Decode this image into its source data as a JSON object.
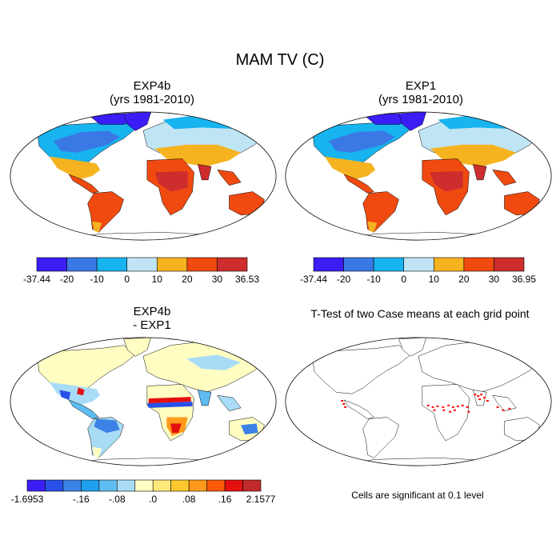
{
  "title": "MAM TV (C)",
  "panels": [
    {
      "id": "exp4b",
      "title_line1": "EXP4b",
      "title_line2": "(yrs 1981-2010)"
    },
    {
      "id": "exp1",
      "title_line1": "EXP1",
      "title_line2": "(yrs 1981-2010)"
    },
    {
      "id": "diff",
      "title_line1": "EXP4b",
      "title_line2": "- EXP1"
    },
    {
      "id": "ttest",
      "title_line1": "T-Test of two Case means at each grid point"
    }
  ],
  "colorbars": [
    {
      "id": "exp4b",
      "colors": [
        "#3a1ef5",
        "#3a78e6",
        "#17b4ef",
        "#bfe5f5",
        "#f5b320",
        "#f04a10",
        "#cd2d2d"
      ],
      "labels": [
        "-37.44",
        "-20",
        "-10",
        "0",
        "10",
        "20",
        "30",
        "36.53"
      ]
    },
    {
      "id": "exp1",
      "colors": [
        "#3a1ef5",
        "#3a78e6",
        "#17b4ef",
        "#bfe5f5",
        "#f5b320",
        "#f04a10",
        "#cd2d2d"
      ],
      "labels": [
        "-37.44",
        "-20",
        "-10",
        "0",
        "10",
        "20",
        "30",
        "36.95"
      ]
    },
    {
      "id": "diff",
      "colors": [
        "#3b1ef5",
        "#2850e8",
        "#3c82e6",
        "#1ea0ef",
        "#5fbcf0",
        "#a8dcf6",
        "#fffdc2",
        "#ffe97a",
        "#ffc72e",
        "#ff9a1c",
        "#ff5a0a",
        "#e41010",
        "#c02a2a"
      ],
      "labels": [
        "-1.6953",
        "-.16",
        "-.08",
        ".0",
        ".08",
        ".16",
        "2.1577"
      ],
      "label_boxes": [
        0,
        3,
        5,
        7,
        9,
        11,
        13
      ]
    }
  ],
  "note": "Cells are significant at 0.1 level",
  "colors": {
    "land_outline": "#000000",
    "ttest_points": "#ff0000"
  }
}
